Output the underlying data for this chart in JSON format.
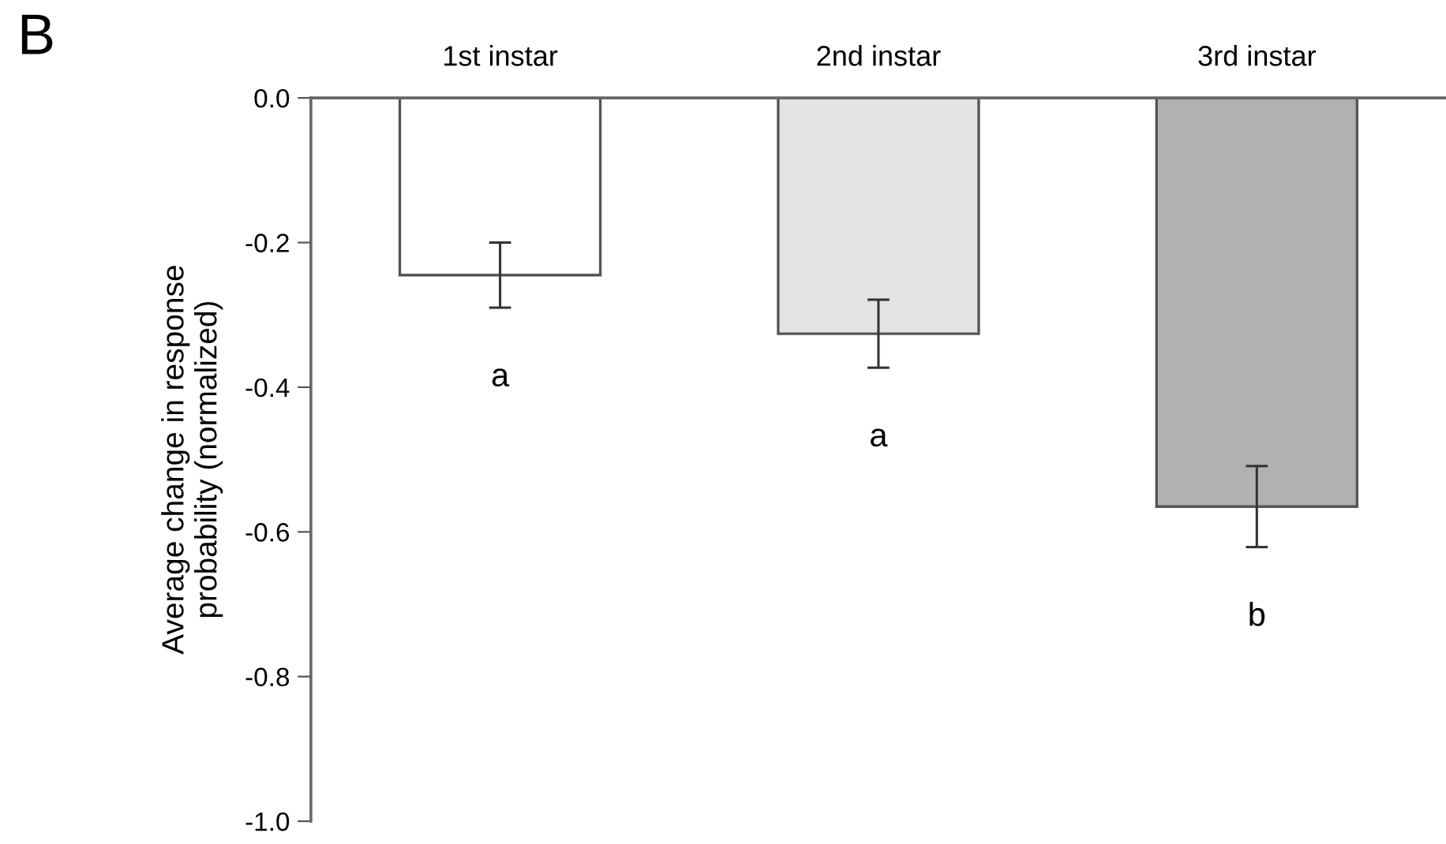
{
  "chart_data": {
    "type": "bar",
    "ylabel": "Average change in response\nprobability (normalized)",
    "categories": [
      "1st instar",
      "2nd instar",
      "3rd instar"
    ],
    "values": [
      -0.245,
      -0.326,
      -0.565
    ],
    "errors": [
      0.045,
      0.047,
      0.056
    ],
    "colors": [
      "#ffffff",
      "#e3e3e3",
      "#b1b1b1"
    ],
    "ylim": [
      -1.0,
      0.0
    ],
    "yticks": [
      {
        "value": -1.0,
        "label": "-1.0"
      },
      {
        "value": -0.8,
        "label": "-0.8"
      },
      {
        "value": -0.6,
        "label": "-0.6"
      },
      {
        "value": -0.4,
        "label": "-0.4"
      },
      {
        "value": -0.2,
        "label": "-0.2"
      },
      {
        "value": 0.0,
        "label": "0.0"
      }
    ],
    "grid": false,
    "annotations": [
      "B",
      "a",
      "a",
      "b"
    ]
  }
}
